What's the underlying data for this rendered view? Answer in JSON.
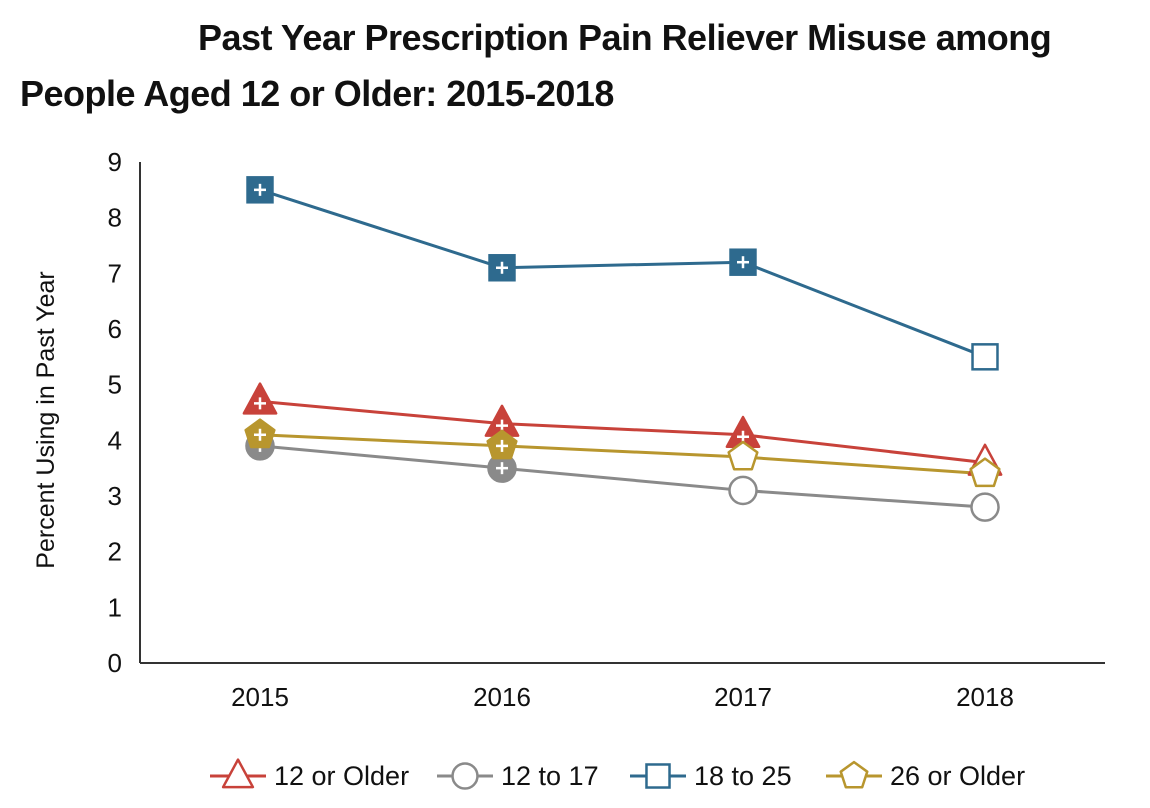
{
  "chart_data": {
    "type": "line",
    "title_line1": "Past Year Prescription Pain Reliever Misuse among",
    "title_line2": "People Aged 12 or Older: 2015-2018",
    "xlabel": "",
    "ylabel": "Percent Using in Past Year",
    "categories": [
      "2015",
      "2016",
      "2017",
      "2018"
    ],
    "ylim": [
      0,
      9
    ],
    "yticks": [
      0,
      1,
      2,
      3,
      4,
      5,
      6,
      7,
      8,
      9
    ],
    "series": [
      {
        "name": "12 or Older",
        "marker": "triangle",
        "color": "#c8423a",
        "values": [
          4.7,
          4.3,
          4.1,
          3.6
        ],
        "significant": [
          true,
          true,
          true,
          false
        ]
      },
      {
        "name": "12 to 17",
        "marker": "circle",
        "color": "#8a8a8a",
        "values": [
          3.9,
          3.5,
          3.1,
          2.8
        ],
        "significant": [
          true,
          true,
          false,
          false
        ]
      },
      {
        "name": "18 to 25",
        "marker": "square",
        "color": "#2e6a8e",
        "values": [
          8.5,
          7.1,
          7.2,
          5.5
        ],
        "significant": [
          true,
          true,
          true,
          false
        ]
      },
      {
        "name": "26 or Older",
        "marker": "pentagon",
        "color": "#b8962e",
        "values": [
          4.1,
          3.9,
          3.7,
          3.4
        ],
        "significant": [
          true,
          true,
          false,
          false
        ]
      }
    ],
    "legend_position": "bottom"
  }
}
